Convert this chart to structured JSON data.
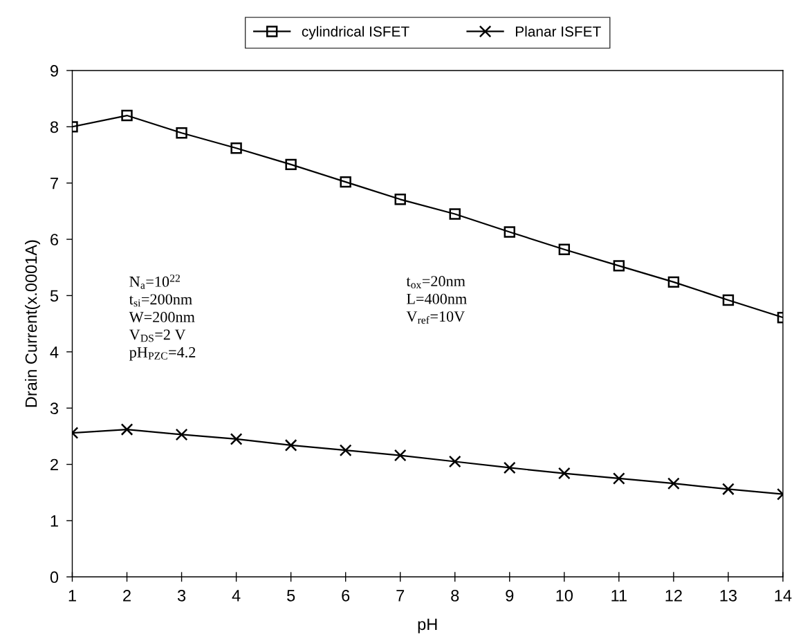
{
  "chart_data": {
    "type": "line",
    "xlabel": "pH",
    "ylabel": "Drain Current(x.0001A)",
    "x": [
      1,
      2,
      3,
      4,
      5,
      6,
      7,
      8,
      9,
      10,
      11,
      12,
      13,
      14
    ],
    "series": [
      {
        "name": "cylindrical ISFET",
        "color": "#000000",
        "marker": "square",
        "values": [
          8.0,
          8.2,
          7.89,
          7.62,
          7.33,
          7.02,
          6.71,
          6.45,
          6.13,
          5.82,
          5.53,
          5.24,
          4.92,
          4.61
        ]
      },
      {
        "name": "Planar ISFET",
        "color": "#000000",
        "marker": "cross",
        "values": [
          2.56,
          2.62,
          2.53,
          2.45,
          2.34,
          2.25,
          2.16,
          2.05,
          1.94,
          1.84,
          1.75,
          1.66,
          1.56,
          1.47
        ]
      }
    ],
    "xlim": [
      1,
      14
    ],
    "xticks": [
      1,
      2,
      3,
      4,
      5,
      6,
      7,
      8,
      9,
      10,
      11,
      12,
      13,
      14
    ],
    "ylim": [
      0,
      9
    ],
    "yticks": [
      0,
      1,
      2,
      3,
      4,
      5,
      6,
      7,
      8,
      9
    ],
    "grid": false,
    "legend": "top",
    "line_style": "solid",
    "annotations": [
      "N$_{a}$=10$^{22}$\nt$_{si}$=200nm\nW=200nm\nV$_{DS}$=2 V\npH$_{PZC}$=4.2",
      "t$_{ox}$=20nm\nL=400nm\nV$_{ref}$=10V"
    ]
  }
}
